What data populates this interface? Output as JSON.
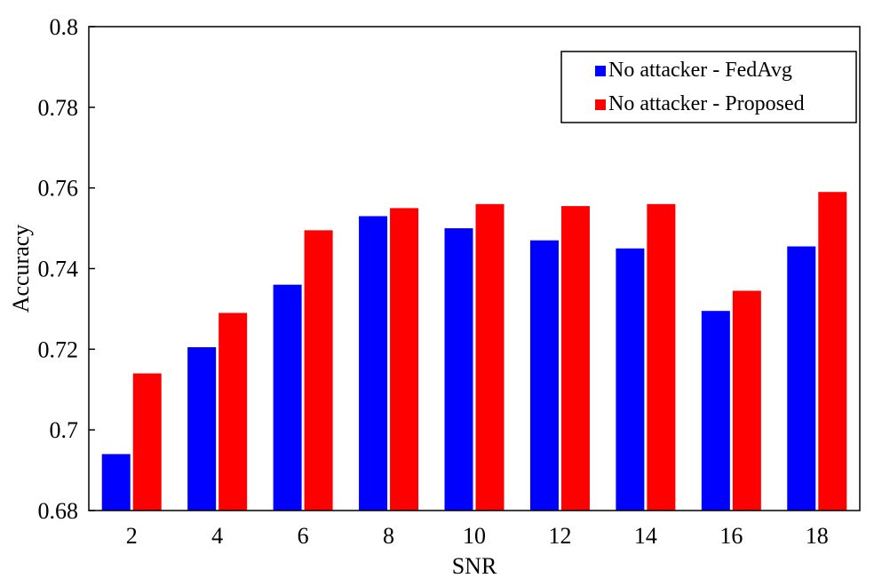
{
  "chart_data": {
    "type": "bar",
    "title": "",
    "xlabel": "SNR",
    "ylabel": "Accuracy",
    "categories": [
      "2",
      "4",
      "6",
      "8",
      "10",
      "12",
      "14",
      "16",
      "18"
    ],
    "ylim": [
      0.68,
      0.8
    ],
    "yticks": [
      "0.68",
      "0.7",
      "0.72",
      "0.74",
      "0.76",
      "0.78",
      "0.8"
    ],
    "grid": false,
    "legend_position": "top-right",
    "series": [
      {
        "name": "No attacker - FedAvg",
        "color": "#0000FF",
        "values": [
          0.694,
          0.7205,
          0.736,
          0.753,
          0.75,
          0.747,
          0.745,
          0.7295,
          0.7455
        ]
      },
      {
        "name": "No attacker - Proposed",
        "color": "#FF0000",
        "values": [
          0.714,
          0.729,
          0.7495,
          0.755,
          0.756,
          0.7555,
          0.756,
          0.7345,
          0.759
        ]
      }
    ]
  }
}
